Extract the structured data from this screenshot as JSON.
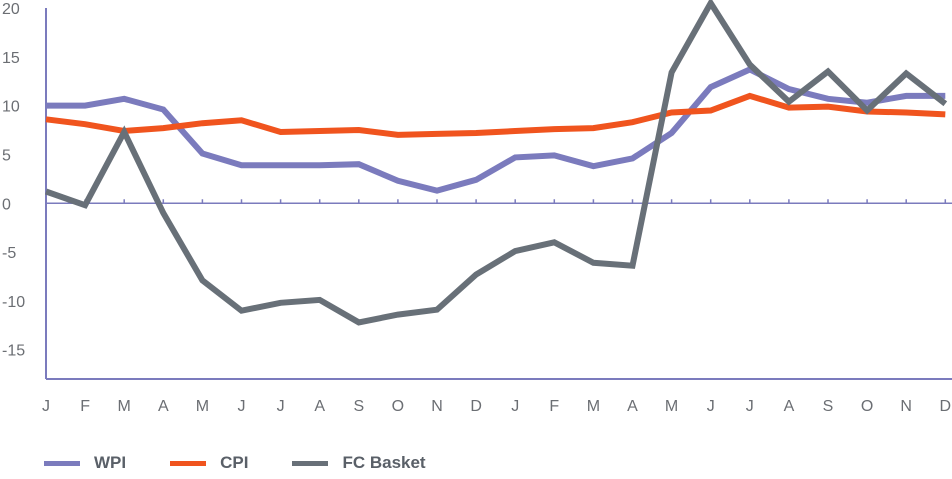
{
  "chart_data": {
    "type": "line",
    "categories": [
      "J",
      "F",
      "M",
      "A",
      "M",
      "J",
      "J",
      "A",
      "S",
      "O",
      "N",
      "D",
      "J",
      "F",
      "M",
      "A",
      "M",
      "J",
      "J",
      "A",
      "S",
      "O",
      "N",
      "D"
    ],
    "ylim": [
      -18,
      20
    ],
    "yticks": [
      20,
      15,
      10,
      5,
      0,
      -5,
      -10,
      -15
    ],
    "ytick_labels": [
      "20",
      "15",
      "10",
      "5",
      "0",
      "-5",
      "-10",
      "-15"
    ],
    "grid": false,
    "legend_position": "bottom-left",
    "series": [
      {
        "name": "WPI",
        "color": "#7b7bbd",
        "values": [
          10.0,
          10.0,
          10.7,
          9.6,
          5.1,
          3.9,
          3.9,
          3.9,
          4.0,
          2.3,
          1.3,
          2.4,
          4.7,
          4.9,
          3.8,
          4.6,
          7.2,
          11.9,
          13.7,
          11.7,
          10.7,
          10.3,
          11.0,
          11.0
        ]
      },
      {
        "name": "CPI",
        "color": "#f0541e",
        "values": [
          8.6,
          8.1,
          7.4,
          7.7,
          8.2,
          8.5,
          7.3,
          7.4,
          7.5,
          7.0,
          7.1,
          7.2,
          7.4,
          7.6,
          7.7,
          8.3,
          9.3,
          9.5,
          11.0,
          9.8,
          9.9,
          9.4,
          9.3,
          9.1
        ]
      },
      {
        "name": "FC Basket",
        "color": "#687078",
        "values": [
          1.2,
          -0.2,
          7.3,
          -1.0,
          -7.9,
          -11.0,
          -10.2,
          -9.9,
          -12.2,
          -11.4,
          -10.9,
          -7.3,
          -4.9,
          -4.0,
          -6.1,
          -6.4,
          13.4,
          20.5,
          14.2,
          10.4,
          13.5,
          9.5,
          13.3,
          10.2
        ]
      }
    ]
  }
}
